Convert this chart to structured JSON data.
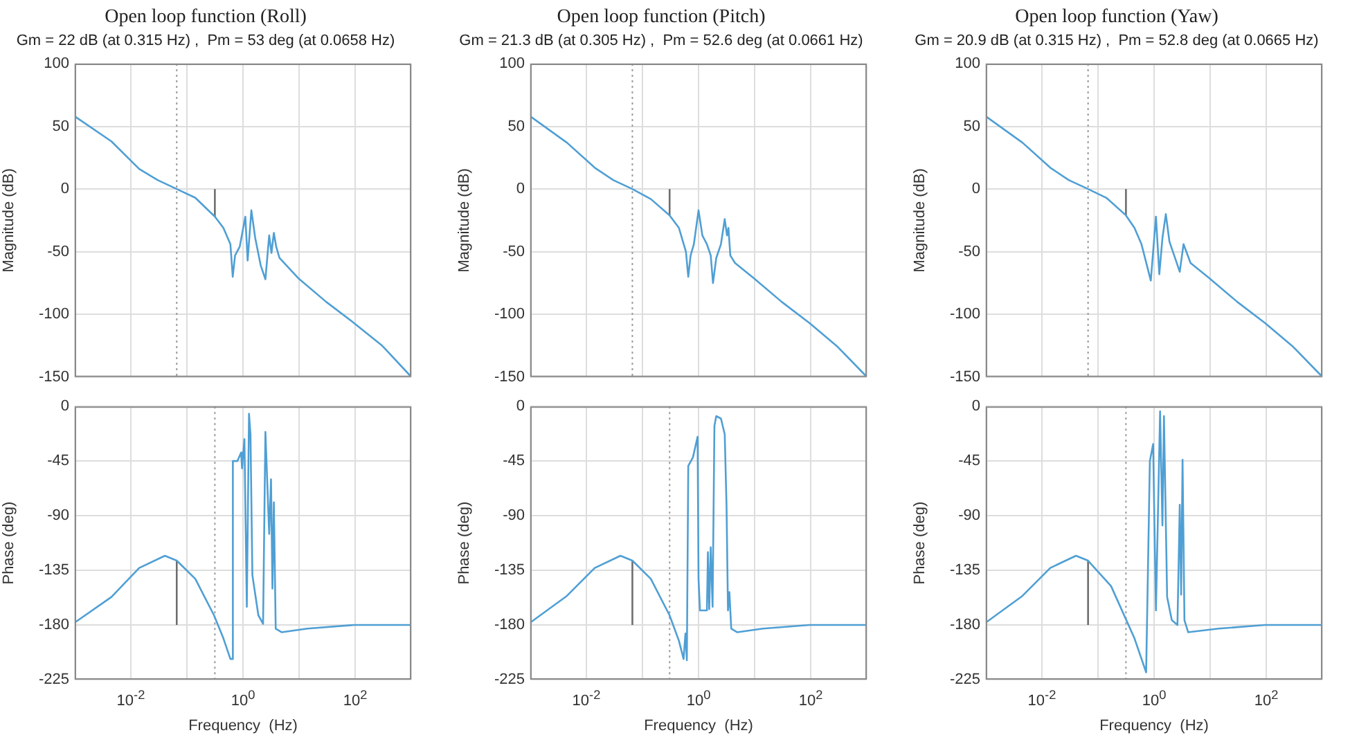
{
  "chart_data": [
    {
      "type": "line",
      "title": "Open loop function (Roll)",
      "subtitle": "Gm = 22 dB (at 0.315 Hz) ,  Pm = 53 deg (at 0.0658 Hz)",
      "ylabel": "Magnitude (dB)",
      "log": "x",
      "grid": true,
      "legend": false,
      "tick_labels": "y",
      "xlim": [
        0.001,
        1000
      ],
      "xticks": [
        {
          "value": 0.001,
          "label": null
        },
        {
          "value": 0.01,
          "label": null
        },
        {
          "value": 0.1,
          "label": null
        },
        {
          "value": 1,
          "label": null
        },
        {
          "value": 10,
          "label": null
        },
        {
          "value": 100,
          "label": null
        },
        {
          "value": 1000,
          "label": null
        }
      ],
      "ylim": [
        -150,
        100
      ],
      "yticks": [
        -150,
        -100,
        -50,
        0,
        50,
        100
      ],
      "ref_lines": [
        {
          "axis": "x",
          "value": 0.0658,
          "color": "#9a9a9a",
          "line_style": "dotted"
        }
      ],
      "series": [
        {
          "type": "line",
          "color": "#4f9fd4",
          "x": [
            0.001,
            0.0045,
            0.0141,
            0.0304,
            0.0658,
            0.141,
            0.315,
            0.447,
            0.596,
            0.656,
            0.722,
            0.874,
            1.1,
            1.21,
            1.41,
            1.65,
            2.07,
            2.51,
            2.93,
            3.22,
            3.55,
            3.91,
            4.47,
            9.6,
            30.4,
            96,
            304,
            962
          ],
          "values": [
            58,
            38,
            16,
            7,
            0,
            -7,
            -22,
            -31,
            -44,
            -70,
            -53,
            -46,
            -22,
            -57,
            -17,
            -39,
            -61,
            -72,
            -37,
            -51,
            -35,
            -46,
            -55,
            -71,
            -90,
            -107,
            -125,
            -149
          ]
        },
        {
          "type": "line",
          "color": "#6e6e6e",
          "x": [
            0.315,
            0.315
          ],
          "values": [
            -22,
            0
          ]
        }
      ]
    },
    {
      "type": "line",
      "title": "Open loop function (Pitch)",
      "subtitle": "Gm = 21.3 dB (at 0.305 Hz) ,  Pm = 52.6 deg (at 0.0661 Hz)",
      "ylabel": "Magnitude (dB)",
      "log": "x",
      "grid": true,
      "legend": false,
      "tick_labels": "y",
      "xlim": [
        0.001,
        1000
      ],
      "xticks": [
        {
          "value": 0.001,
          "label": null
        },
        {
          "value": 0.01,
          "label": null
        },
        {
          "value": 0.1,
          "label": null
        },
        {
          "value": 1,
          "label": null
        },
        {
          "value": 10,
          "label": null
        },
        {
          "value": 100,
          "label": null
        },
        {
          "value": 1000,
          "label": null
        }
      ],
      "ylim": [
        -150,
        100
      ],
      "yticks": [
        -150,
        -100,
        -50,
        0,
        50,
        100
      ],
      "ref_lines": [
        {
          "axis": "x",
          "value": 0.0661,
          "color": "#9a9a9a",
          "line_style": "dotted"
        }
      ],
      "series": [
        {
          "type": "line",
          "color": "#4f9fd4",
          "x": [
            0.001,
            0.0045,
            0.0141,
            0.0304,
            0.0661,
            0.141,
            0.305,
            0.447,
            0.596,
            0.656,
            0.722,
            0.825,
            1.0,
            1.17,
            1.41,
            1.65,
            1.81,
            2.07,
            2.51,
            2.93,
            3.22,
            3.41,
            3.69,
            4.47,
            9.6,
            30.4,
            96,
            304,
            962
          ],
          "values": [
            58,
            37,
            17,
            7,
            0,
            -8,
            -21,
            -31,
            -50,
            -70,
            -53,
            -44,
            -17,
            -37,
            -44,
            -53,
            -75,
            -55,
            -44,
            -24,
            -37,
            -31,
            -53,
            -59,
            -71,
            -90,
            -107,
            -126,
            -149
          ]
        },
        {
          "type": "line",
          "color": "#6e6e6e",
          "x": [
            0.305,
            0.305
          ],
          "values": [
            -21,
            0
          ]
        }
      ]
    },
    {
      "type": "line",
      "title": "Open loop function (Yaw)",
      "subtitle": "Gm = 20.9 dB (at 0.315 Hz) ,  Pm = 52.8 deg (at 0.0665 Hz)",
      "ylabel": "Magnitude (dB)",
      "log": "x",
      "grid": true,
      "legend": false,
      "tick_labels": "y",
      "xlim": [
        0.001,
        1000
      ],
      "xticks": [
        {
          "value": 0.001,
          "label": null
        },
        {
          "value": 0.01,
          "label": null
        },
        {
          "value": 0.1,
          "label": null
        },
        {
          "value": 1,
          "label": null
        },
        {
          "value": 10,
          "label": null
        },
        {
          "value": 100,
          "label": null
        },
        {
          "value": 1000,
          "label": null
        }
      ],
      "ylim": [
        -150,
        100
      ],
      "yticks": [
        -150,
        -100,
        -50,
        0,
        50,
        100
      ],
      "ref_lines": [
        {
          "axis": "x",
          "value": 0.0665,
          "color": "#9a9a9a",
          "line_style": "dotted"
        }
      ],
      "series": [
        {
          "type": "line",
          "color": "#4f9fd4",
          "x": [
            0.001,
            0.0045,
            0.0141,
            0.0304,
            0.0665,
            0.141,
            0.315,
            0.447,
            0.596,
            0.874,
            0.962,
            1.08,
            1.24,
            1.41,
            1.62,
            1.88,
            2.87,
            3.35,
            4.47,
            9.6,
            30.4,
            96,
            304,
            962
          ],
          "values": [
            58,
            37,
            17,
            7,
            0,
            -7,
            -21,
            -31,
            -44,
            -73,
            -50,
            -22,
            -68,
            -39,
            -20,
            -42,
            -66,
            -44,
            -59,
            -71,
            -90,
            -107,
            -126,
            -149
          ]
        },
        {
          "type": "line",
          "color": "#6e6e6e",
          "x": [
            0.315,
            0.315
          ],
          "values": [
            -21,
            0
          ]
        }
      ]
    },
    {
      "type": "line",
      "xlabel": "Frequency  (Hz)",
      "ylabel": "Phase (deg)",
      "log": "x",
      "grid": true,
      "legend": false,
      "xlim": [
        0.001,
        1000
      ],
      "xticks": [
        {
          "value": 0.001,
          "label": null
        },
        {
          "value": 0.01,
          "label": "10$^{-2}$"
        },
        {
          "value": 0.1,
          "label": null
        },
        {
          "value": 1,
          "label": "10$^{0}$"
        },
        {
          "value": 10,
          "label": null
        },
        {
          "value": 100,
          "label": "10$^{2}$"
        },
        {
          "value": 1000,
          "label": null
        }
      ],
      "ylim": [
        -225,
        0
      ],
      "yticks": [
        -225,
        -180,
        -135,
        -90,
        -45,
        0
      ],
      "ref_lines": [
        {
          "axis": "x",
          "value": 0.315,
          "color": "#9a9a9a",
          "line_style": "dotted"
        }
      ],
      "series": [
        {
          "type": "line",
          "color": "#4f9fd4",
          "x": [
            0.001,
            0.0045,
            0.0141,
            0.0405,
            0.0658,
            0.141,
            0.304,
            0.447,
            0.596,
            0.656,
            0.66,
            0.794,
            0.926,
            0.962,
            1.06,
            1.17,
            1.28,
            1.36,
            1.47,
            1.88,
            2.28,
            2.51,
            2.93,
            3.16,
            3.35,
            3.55,
            3.83,
            4.92,
            14.1,
            96,
            1000
          ],
          "values": [
            -178,
            -157,
            -133,
            -123,
            -127,
            -142,
            -172,
            -191,
            -208,
            -208,
            -45,
            -45,
            -38,
            -51,
            -27,
            -165,
            -6,
            -23,
            -139,
            -172,
            -179,
            -21,
            -105,
            -60,
            -150,
            -79,
            -183,
            -186,
            -183,
            -180,
            -180
          ]
        },
        {
          "type": "line",
          "color": "#6e6e6e",
          "x": [
            0.0658,
            0.0658
          ],
          "values": [
            -180,
            -127
          ]
        }
      ]
    },
    {
      "type": "line",
      "xlabel": "Frequency  (Hz)",
      "ylabel": "Phase (deg)",
      "log": "x",
      "grid": true,
      "legend": false,
      "xlim": [
        0.001,
        1000
      ],
      "xticks": [
        {
          "value": 0.001,
          "label": null
        },
        {
          "value": 0.01,
          "label": "10$^{-2}$"
        },
        {
          "value": 0.1,
          "label": null
        },
        {
          "value": 1,
          "label": "10$^{0}$"
        },
        {
          "value": 10,
          "label": null
        },
        {
          "value": 100,
          "label": "10$^{2}$"
        },
        {
          "value": 1000,
          "label": null
        }
      ],
      "ylim": [
        -225,
        0
      ],
      "yticks": [
        -225,
        -180,
        -135,
        -90,
        -45,
        0
      ],
      "ref_lines": [
        {
          "axis": "x",
          "value": 0.305,
          "color": "#9a9a9a",
          "line_style": "dotted"
        }
      ],
      "series": [
        {
          "type": "line",
          "color": "#4f9fd4",
          "x": [
            0.001,
            0.0045,
            0.0141,
            0.0405,
            0.0661,
            0.141,
            0.304,
            0.447,
            0.541,
            0.584,
            0.619,
            0.656,
            0.794,
            0.962,
            1.0,
            1.06,
            1.41,
            1.47,
            1.55,
            1.65,
            1.78,
            1.92,
            2.07,
            2.51,
            2.93,
            3.16,
            3.35,
            3.55,
            3.83,
            4.92,
            14.1,
            96,
            1000
          ],
          "values": [
            -178,
            -156,
            -133,
            -123,
            -127,
            -142,
            -172,
            -193,
            -208,
            -187,
            -209,
            -49,
            -42,
            -25,
            -142,
            -168,
            -168,
            -120,
            -167,
            -116,
            -165,
            -16,
            -8,
            -10,
            -23,
            -83,
            -168,
            -153,
            -183,
            -186,
            -183,
            -180,
            -180
          ]
        },
        {
          "type": "line",
          "color": "#6e6e6e",
          "x": [
            0.0661,
            0.0661
          ],
          "values": [
            -180,
            -127
          ]
        }
      ]
    },
    {
      "type": "line",
      "xlabel": "Frequency  (Hz)",
      "ylabel": "Phase (deg)",
      "log": "x",
      "grid": true,
      "legend": false,
      "xlim": [
        0.001,
        1000
      ],
      "xticks": [
        {
          "value": 0.001,
          "label": null
        },
        {
          "value": 0.01,
          "label": "10$^{-2}$"
        },
        {
          "value": 0.1,
          "label": null
        },
        {
          "value": 1,
          "label": "10$^{0}$"
        },
        {
          "value": 10,
          "label": null
        },
        {
          "value": 100,
          "label": "10$^{2}$"
        },
        {
          "value": 1000,
          "label": null
        }
      ],
      "ylim": [
        -225,
        0
      ],
      "yticks": [
        -225,
        -180,
        -135,
        -90,
        -45,
        0
      ],
      "ref_lines": [
        {
          "axis": "x",
          "value": 0.315,
          "color": "#9a9a9a",
          "line_style": "dotted"
        }
      ],
      "series": [
        {
          "type": "line",
          "color": "#4f9fd4",
          "x": [
            0.001,
            0.0045,
            0.0141,
            0.0405,
            0.0665,
            0.171,
            0.447,
            0.722,
            0.841,
            0.962,
            1.0,
            1.08,
            1.28,
            1.41,
            1.5,
            1.71,
            2.07,
            2.61,
            2.87,
            3.04,
            3.22,
            3.48,
            4.06,
            14.1,
            96,
            1000
          ],
          "values": [
            -178,
            -156,
            -133,
            -123,
            -127,
            -148,
            -191,
            -219,
            -45,
            -31,
            -79,
            -168,
            -4,
            -98,
            -8,
            -157,
            -176,
            -180,
            -81,
            -155,
            -44,
            -176,
            -186,
            -183,
            -180,
            -180
          ]
        },
        {
          "type": "line",
          "color": "#6e6e6e",
          "x": [
            0.0665,
            0.0665
          ],
          "values": [
            -180,
            -127
          ]
        }
      ]
    }
  ]
}
